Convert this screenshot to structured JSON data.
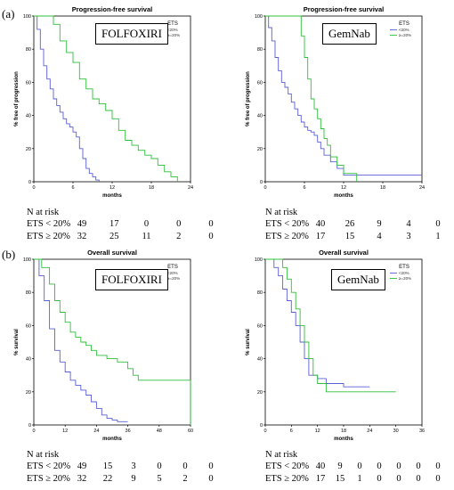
{
  "panels": [
    {
      "label": "(a)"
    },
    {
      "label": "(b)"
    }
  ],
  "risk_title": "N at risk",
  "colors": {
    "ets_lt": "#5a5fd6",
    "ets_ge": "#2fbf3a",
    "axis": "#000000"
  },
  "chart_data": [
    {
      "type": "line",
      "title": "Progression-free survival",
      "box_label": "FOLFOXIRI",
      "xlabel": "months",
      "ylabel": "% free of progression",
      "xlim": [
        0,
        24
      ],
      "ylim": [
        0,
        100
      ],
      "xticks": [
        "0",
        "6",
        "12",
        "18",
        "24"
      ],
      "yticks": [
        "0",
        "20",
        "40",
        "60",
        "80",
        "100"
      ],
      "legend_title": "ETS",
      "legend_position": "top-right",
      "series": [
        {
          "name": "<20%",
          "color": "#5a5fd6",
          "x": [
            0,
            0.5,
            1,
            1.5,
            2,
            2.5,
            3,
            3.5,
            4,
            4.5,
            5,
            5.5,
            6,
            6.5,
            7,
            7.5,
            8,
            8.5,
            9,
            9.5,
            10
          ],
          "y": [
            100,
            92,
            80,
            70,
            62,
            56,
            50,
            46,
            42,
            38,
            35,
            33,
            30,
            27,
            20,
            14,
            8,
            5,
            3,
            1,
            0
          ]
        },
        {
          "name": "≥=20%",
          "color": "#2fbf3a",
          "x": [
            0,
            2,
            3,
            4,
            5,
            6,
            7,
            8,
            9,
            10,
            11,
            12,
            13,
            14,
            15,
            16,
            17,
            18,
            19,
            20,
            21,
            22
          ],
          "y": [
            100,
            100,
            95,
            85,
            78,
            72,
            62,
            56,
            50,
            47,
            43,
            38,
            31,
            25,
            22,
            19,
            16,
            14,
            10,
            6,
            3,
            0
          ]
        }
      ],
      "risk_rows": [
        {
          "label": "ETS < 20%",
          "values": [
            "49",
            "17",
            "0",
            "0",
            "0"
          ]
        },
        {
          "label": "ETS ≥ 20%",
          "values": [
            "32",
            "25",
            "11",
            "2",
            "0"
          ]
        }
      ]
    },
    {
      "type": "line",
      "title": "Progression-free survival",
      "box_label": "GemNab",
      "xlabel": "months",
      "ylabel": "% free of progression",
      "xlim": [
        0,
        24
      ],
      "ylim": [
        0,
        100
      ],
      "xticks": [
        "0",
        "6",
        "12",
        "18",
        "24"
      ],
      "yticks": [
        "0",
        "20",
        "40",
        "60",
        "80",
        "100"
      ],
      "legend_title": "ETS",
      "legend_position": "top-right",
      "series": [
        {
          "name": "<20%",
          "color": "#5a5fd6",
          "x": [
            0,
            0.5,
            1,
            1.5,
            2,
            2.5,
            3,
            3.5,
            4,
            4.5,
            5,
            5.5,
            6,
            6.5,
            7,
            7.5,
            8,
            8.5,
            9,
            10,
            11,
            12,
            24
          ],
          "y": [
            100,
            93,
            85,
            75,
            67,
            60,
            57,
            53,
            48,
            44,
            40,
            36,
            33,
            31,
            30,
            28,
            24,
            20,
            16,
            12,
            8,
            4,
            4
          ]
        },
        {
          "name": "≥=20%",
          "color": "#2fbf3a",
          "x": [
            0,
            5,
            5.5,
            6,
            6.5,
            7,
            7.5,
            8,
            8.5,
            9,
            9.5,
            10,
            11,
            12,
            14
          ],
          "y": [
            100,
            100,
            88,
            75,
            62,
            50,
            44,
            38,
            32,
            26,
            22,
            15,
            10,
            5,
            0
          ]
        }
      ],
      "risk_rows": [
        {
          "label": "ETS < 20%",
          "values": [
            "40",
            "26",
            "9",
            "4",
            "0"
          ]
        },
        {
          "label": "ETS ≥ 20%",
          "values": [
            "17",
            "15",
            "4",
            "3",
            "1"
          ]
        }
      ]
    },
    {
      "type": "line",
      "title": "Overall survival",
      "box_label": "FOLFOXIRI",
      "xlabel": "months",
      "ylabel": "% survival",
      "xlim": [
        0,
        60
      ],
      "ylim": [
        0,
        100
      ],
      "xticks": [
        "0",
        "12",
        "24",
        "36",
        "48",
        "60"
      ],
      "yticks": [
        "0",
        "20",
        "40",
        "60",
        "80",
        "100"
      ],
      "legend_title": "ETS",
      "legend_position": "top-right",
      "series": [
        {
          "name": "<20%",
          "color": "#5a5fd6",
          "x": [
            0,
            2,
            4,
            6,
            8,
            10,
            12,
            14,
            16,
            18,
            20,
            22,
            24,
            26,
            28,
            30,
            32,
            36
          ],
          "y": [
            100,
            90,
            75,
            58,
            45,
            38,
            32,
            27,
            24,
            21,
            18,
            14,
            10,
            6,
            4,
            3,
            2,
            2
          ]
        },
        {
          "name": "≥=20%",
          "color": "#2fbf3a",
          "x": [
            0,
            3,
            6,
            8,
            10,
            12,
            14,
            16,
            18,
            20,
            22,
            24,
            28,
            32,
            36,
            38,
            40,
            44,
            48,
            52,
            58,
            60
          ],
          "y": [
            100,
            95,
            85,
            75,
            68,
            62,
            56,
            53,
            50,
            48,
            45,
            42,
            40,
            38,
            34,
            30,
            27,
            27,
            27,
            27,
            27,
            0
          ]
        }
      ],
      "risk_rows": [
        {
          "label": "ETS < 20%",
          "values": [
            "49",
            "15",
            "3",
            "0",
            "0",
            "0"
          ]
        },
        {
          "label": "ETS ≥ 20%",
          "values": [
            "32",
            "22",
            "9",
            "5",
            "2",
            "0"
          ]
        }
      ]
    },
    {
      "type": "line",
      "title": "Overall survival",
      "box_label": "GemNab",
      "xlabel": "months",
      "ylabel": "% survival",
      "xlim": [
        0,
        36
      ],
      "ylim": [
        0,
        100
      ],
      "xticks": [
        "0",
        "6",
        "12",
        "18",
        "24",
        "30",
        "36"
      ],
      "yticks": [
        "0",
        "20",
        "40",
        "60",
        "80",
        "100"
      ],
      "legend_title": "ETS",
      "legend_position": "top-right",
      "series": [
        {
          "name": "<20%",
          "color": "#5a5fd6",
          "x": [
            0,
            2,
            3,
            4,
            5,
            6,
            7,
            8,
            9,
            10,
            12,
            14,
            18,
            22,
            24
          ],
          "y": [
            100,
            95,
            90,
            82,
            75,
            68,
            60,
            50,
            40,
            30,
            28,
            25,
            23,
            23,
            23
          ]
        },
        {
          "name": "≥=20%",
          "color": "#2fbf3a",
          "x": [
            0,
            3,
            4,
            5,
            6,
            7,
            8,
            9,
            10,
            11,
            12,
            14,
            18,
            20,
            24,
            30
          ],
          "y": [
            100,
            100,
            95,
            88,
            80,
            70,
            60,
            50,
            40,
            30,
            25,
            20,
            20,
            20,
            20,
            20
          ]
        }
      ],
      "risk_rows": [
        {
          "label": "ETS < 20%",
          "values": [
            "40",
            "9",
            "0",
            "0",
            "0",
            "0",
            "0"
          ]
        },
        {
          "label": "ETS ≥ 20%",
          "values": [
            "17",
            "15",
            "1",
            "0",
            "0",
            "0",
            "0"
          ]
        }
      ]
    }
  ]
}
